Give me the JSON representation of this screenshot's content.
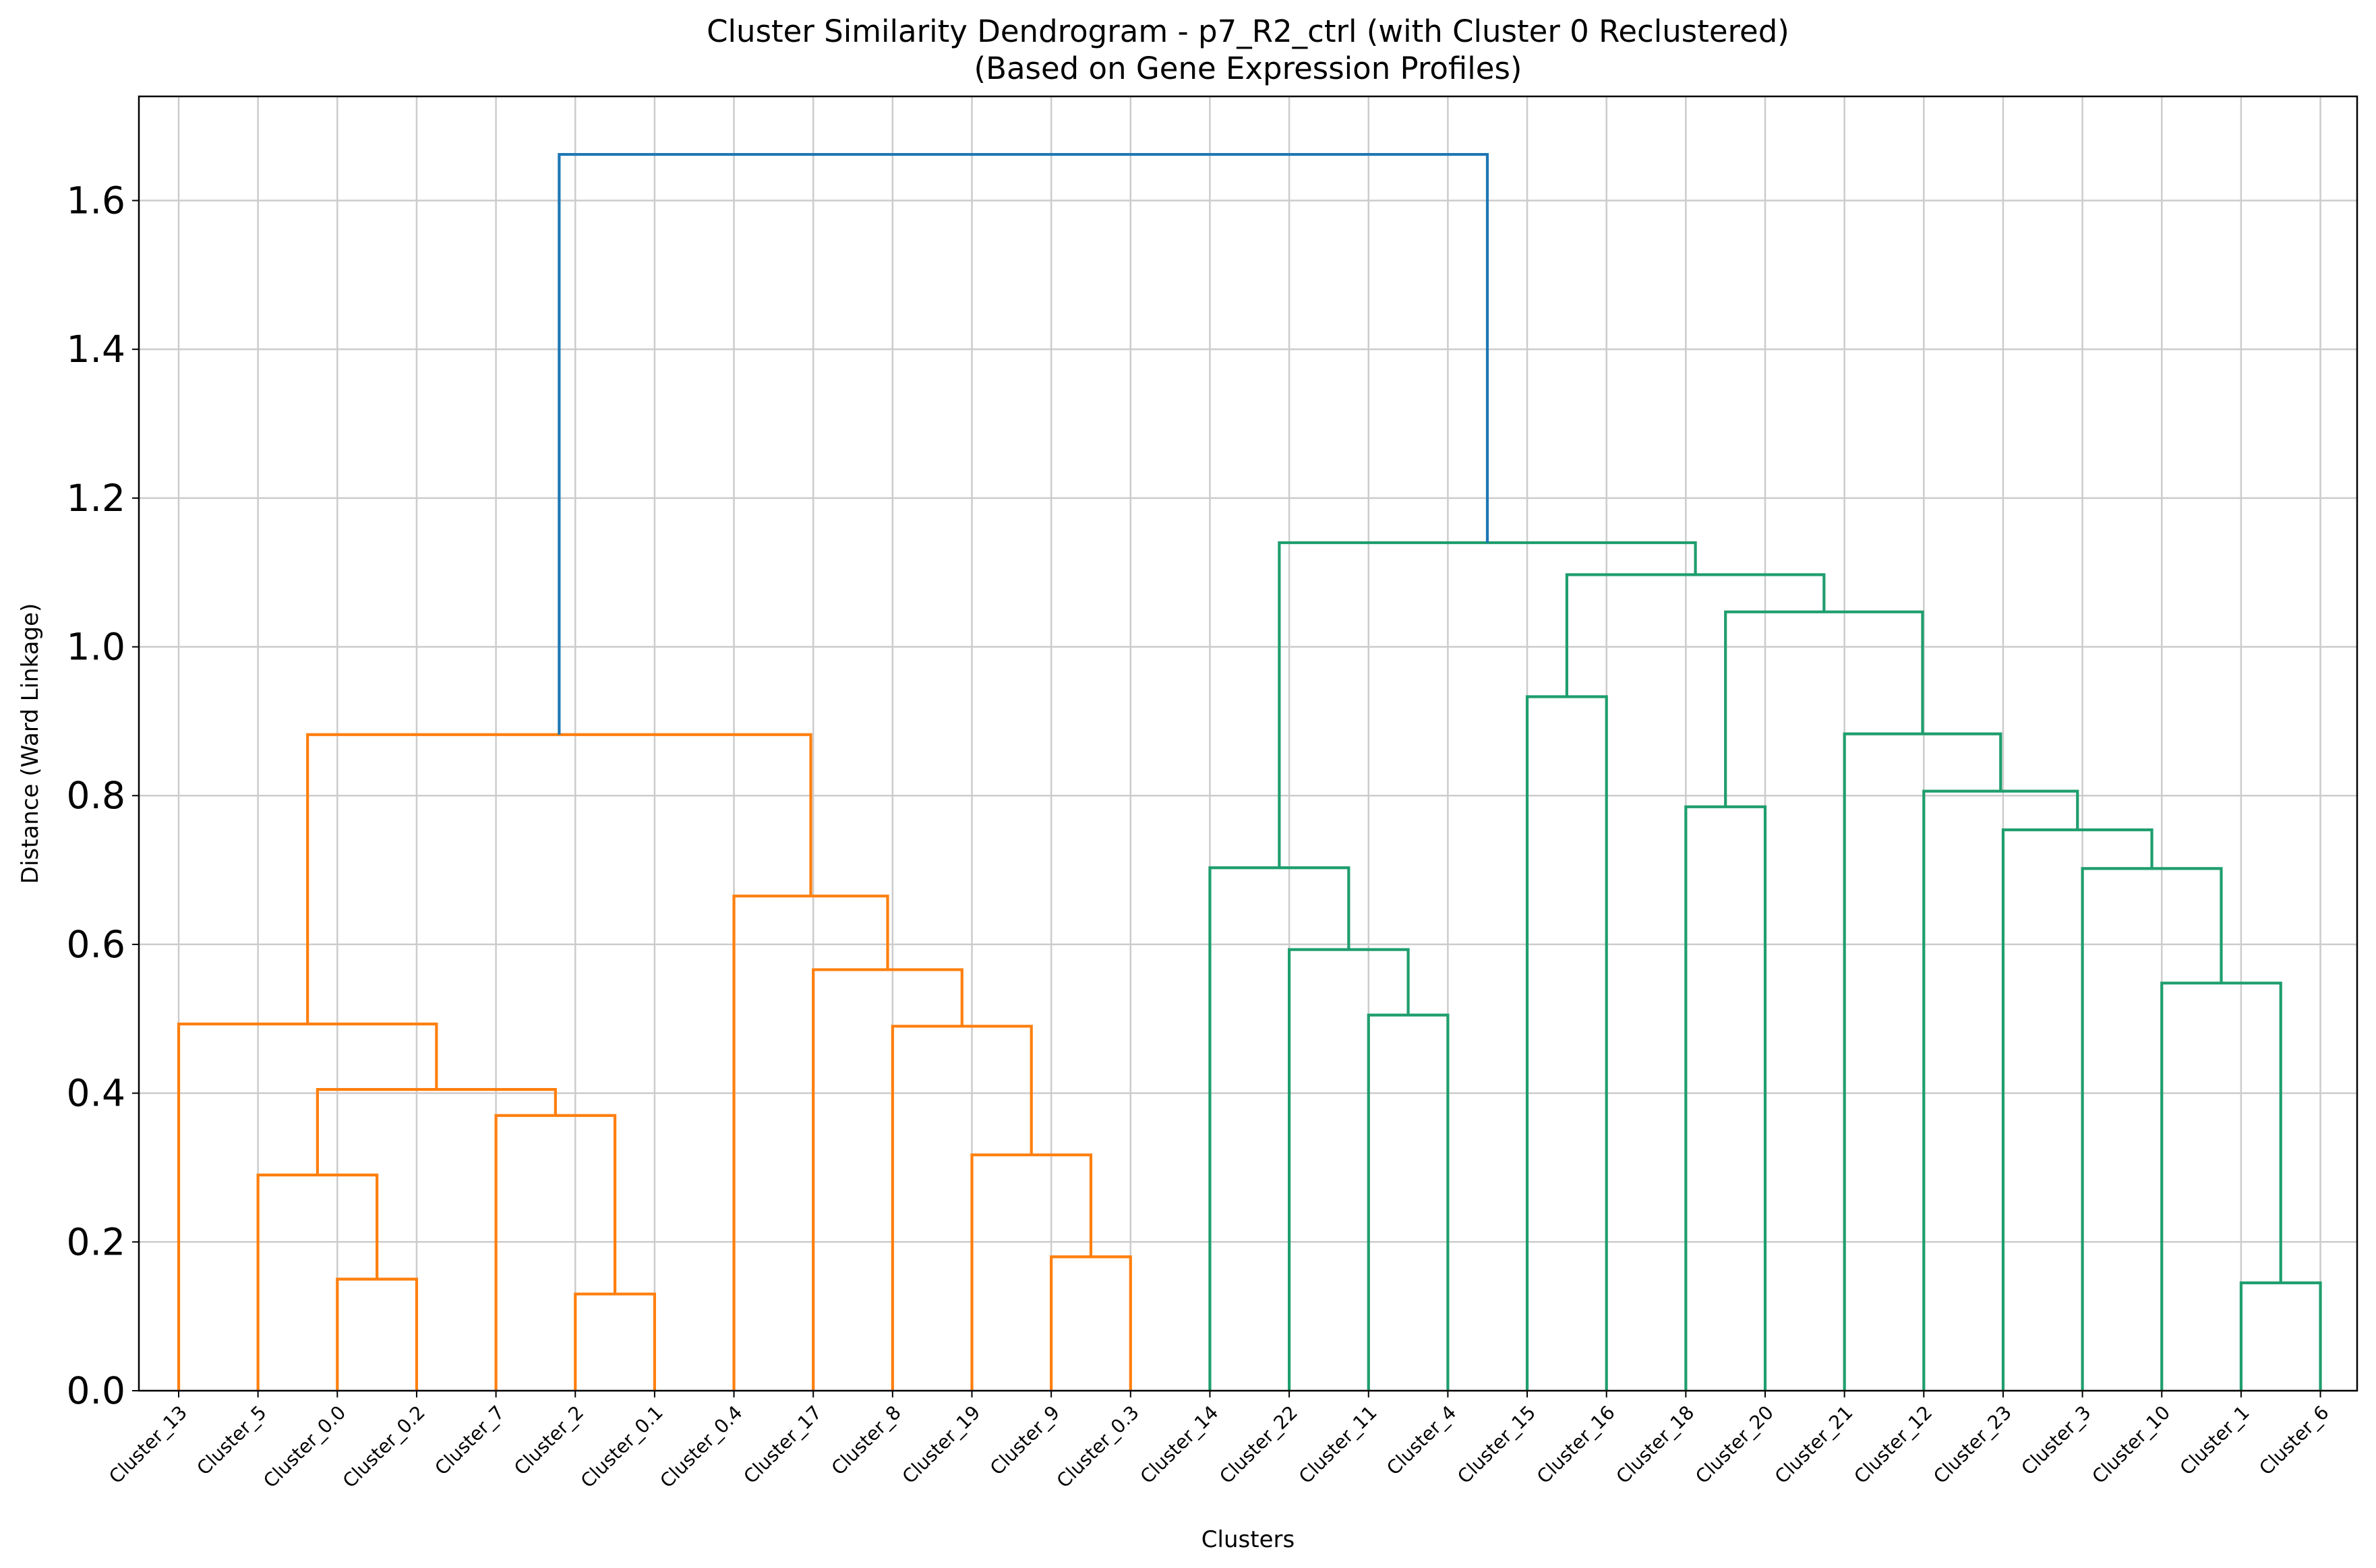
{
  "chart_data": {
    "type": "dendrogram",
    "title": "Cluster Similarity Dendrogram - p7_R2_ctrl (with Cluster 0 Reclustered)",
    "subtitle": "(Based on Gene Expression Profiles)",
    "xlabel": "Clusters",
    "ylabel": "Distance (Ward Linkage)",
    "ylim": [
      0,
      1.74
    ],
    "yticks": [
      "0.0",
      "0.2",
      "0.4",
      "0.6",
      "0.8",
      "1.0",
      "1.2",
      "1.4",
      "1.6"
    ],
    "grid": true,
    "leaves": [
      "Cluster_13",
      "Cluster_5",
      "Cluster_0.0",
      "Cluster_0.2",
      "Cluster_7",
      "Cluster_2",
      "Cluster_0.1",
      "Cluster_0.4",
      "Cluster_17",
      "Cluster_8",
      "Cluster_19",
      "Cluster_9",
      "Cluster_0.3",
      "Cluster_14",
      "Cluster_22",
      "Cluster_11",
      "Cluster_4",
      "Cluster_15",
      "Cluster_16",
      "Cluster_18",
      "Cluster_20",
      "Cluster_21",
      "Cluster_12",
      "Cluster_23",
      "Cluster_3",
      "Cluster_10",
      "Cluster_1",
      "Cluster_6"
    ],
    "colors": {
      "left": "#ff7f0e",
      "right": "#2ca02c_like",
      "root": "#1f77b4"
    },
    "link_colors": {
      "orange": "#ff7f0e",
      "green": "#1f9e6e",
      "blue": "#1f77b4"
    },
    "merges": [
      {
        "a": "L2",
        "b": "L3",
        "height": 0.15,
        "color": "orange"
      },
      {
        "a": "L1",
        "b": "N0",
        "height": 0.29,
        "color": "orange"
      },
      {
        "a": "L5",
        "b": "L6",
        "height": 0.13,
        "color": "orange"
      },
      {
        "a": "L4",
        "b": "N2",
        "height": 0.37,
        "color": "orange"
      },
      {
        "a": "N1",
        "b": "N3",
        "height": 0.405,
        "color": "orange"
      },
      {
        "a": "L0",
        "b": "N4",
        "height": 0.493,
        "color": "orange"
      },
      {
        "a": "L11",
        "b": "L12",
        "height": 0.18,
        "color": "orange"
      },
      {
        "a": "L10",
        "b": "N6",
        "height": 0.317,
        "color": "orange"
      },
      {
        "a": "L9",
        "b": "N7",
        "height": 0.49,
        "color": "orange"
      },
      {
        "a": "L8",
        "b": "N8",
        "height": 0.566,
        "color": "orange"
      },
      {
        "a": "L7",
        "b": "N9",
        "height": 0.665,
        "color": "orange"
      },
      {
        "a": "N5",
        "b": "N10",
        "height": 0.882,
        "color": "orange"
      },
      {
        "a": "L15",
        "b": "L16",
        "height": 0.505,
        "color": "green"
      },
      {
        "a": "L14",
        "b": "N12",
        "height": 0.593,
        "color": "green"
      },
      {
        "a": "L13",
        "b": "N13",
        "height": 0.703,
        "color": "green"
      },
      {
        "a": "L17",
        "b": "L18",
        "height": 0.933,
        "color": "green"
      },
      {
        "a": "L19",
        "b": "L20",
        "height": 0.785,
        "color": "green"
      },
      {
        "a": "L26",
        "b": "L27",
        "height": 0.145,
        "color": "green"
      },
      {
        "a": "L25",
        "b": "N17",
        "height": 0.548,
        "color": "green"
      },
      {
        "a": "L24",
        "b": "N18",
        "height": 0.702,
        "color": "green"
      },
      {
        "a": "L23",
        "b": "N19",
        "height": 0.754,
        "color": "green"
      },
      {
        "a": "L22",
        "b": "N20",
        "height": 0.806,
        "color": "green"
      },
      {
        "a": "L21",
        "b": "N21",
        "height": 0.883,
        "color": "green"
      },
      {
        "a": "N16",
        "b": "N22",
        "height": 1.047,
        "color": "green"
      },
      {
        "a": "N15",
        "b": "N23",
        "height": 1.097,
        "color": "green"
      },
      {
        "a": "N14",
        "b": "N24",
        "height": 1.14,
        "color": "green"
      },
      {
        "a": "N11",
        "b": "N25",
        "height": 1.662,
        "color": "blue"
      }
    ]
  }
}
